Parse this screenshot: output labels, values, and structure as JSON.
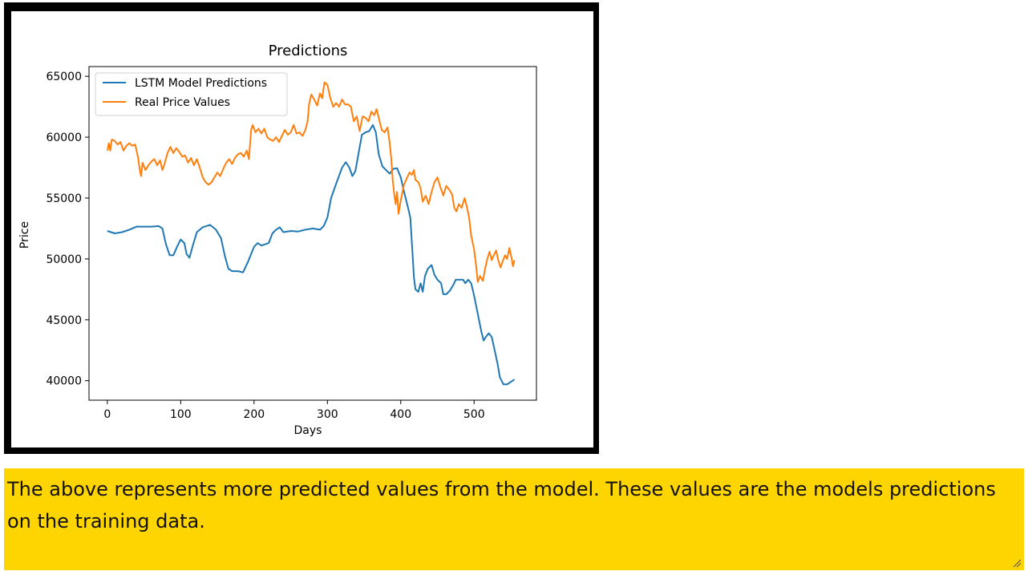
{
  "chart_data": {
    "type": "line",
    "title": "Predictions",
    "xlabel": "Days",
    "ylabel": "Price",
    "xlim": [
      -25,
      585
    ],
    "ylim": [
      38400,
      65800
    ],
    "x_ticks": [
      0,
      100,
      200,
      300,
      400,
      500
    ],
    "y_ticks": [
      40000,
      45000,
      50000,
      55000,
      60000,
      65000
    ],
    "grid": false,
    "legend_position": "upper-left",
    "series": [
      {
        "name": "LSTM Model Predictions",
        "color": "#1f77b4",
        "points": [
          [
            0,
            52300
          ],
          [
            10,
            52100
          ],
          [
            20,
            52200
          ],
          [
            30,
            52400
          ],
          [
            40,
            52650
          ],
          [
            60,
            52650
          ],
          [
            70,
            52700
          ],
          [
            75,
            52500
          ],
          [
            80,
            51200
          ],
          [
            85,
            50300
          ],
          [
            90,
            50300
          ],
          [
            95,
            51000
          ],
          [
            100,
            51600
          ],
          [
            105,
            51300
          ],
          [
            108,
            50400
          ],
          [
            112,
            50100
          ],
          [
            116,
            51000
          ],
          [
            122,
            52200
          ],
          [
            130,
            52600
          ],
          [
            140,
            52800
          ],
          [
            148,
            52400
          ],
          [
            155,
            51700
          ],
          [
            160,
            50300
          ],
          [
            165,
            49200
          ],
          [
            170,
            49000
          ],
          [
            178,
            49000
          ],
          [
            185,
            48900
          ],
          [
            192,
            49800
          ],
          [
            200,
            51000
          ],
          [
            205,
            51300
          ],
          [
            210,
            51100
          ],
          [
            220,
            51300
          ],
          [
            225,
            52100
          ],
          [
            230,
            52400
          ],
          [
            235,
            52600
          ],
          [
            240,
            52200
          ],
          [
            250,
            52300
          ],
          [
            260,
            52250
          ],
          [
            270,
            52400
          ],
          [
            280,
            52500
          ],
          [
            290,
            52400
          ],
          [
            295,
            52700
          ],
          [
            300,
            53400
          ],
          [
            305,
            55000
          ],
          [
            312,
            56200
          ],
          [
            320,
            57500
          ],
          [
            325,
            57950
          ],
          [
            330,
            57500
          ],
          [
            334,
            56800
          ],
          [
            338,
            57200
          ],
          [
            342,
            58500
          ],
          [
            347,
            60200
          ],
          [
            352,
            60400
          ],
          [
            357,
            60500
          ],
          [
            362,
            61000
          ],
          [
            366,
            60400
          ],
          [
            370,
            58600
          ],
          [
            375,
            57600
          ],
          [
            380,
            57300
          ],
          [
            385,
            57000
          ],
          [
            390,
            57400
          ],
          [
            395,
            57450
          ],
          [
            400,
            56700
          ],
          [
            405,
            55400
          ],
          [
            410,
            54200
          ],
          [
            413,
            53400
          ],
          [
            416,
            50500
          ],
          [
            418,
            48500
          ],
          [
            420,
            47500
          ],
          [
            424,
            47300
          ],
          [
            427,
            48000
          ],
          [
            430,
            47300
          ],
          [
            433,
            48600
          ],
          [
            437,
            49200
          ],
          [
            442,
            49500
          ],
          [
            446,
            48700
          ],
          [
            450,
            48300
          ],
          [
            455,
            48000
          ],
          [
            458,
            47100
          ],
          [
            462,
            47100
          ],
          [
            467,
            47400
          ],
          [
            472,
            47900
          ],
          [
            475,
            48300
          ],
          [
            480,
            48300
          ],
          [
            485,
            48300
          ],
          [
            488,
            48000
          ],
          [
            492,
            48300
          ],
          [
            496,
            48000
          ],
          [
            500,
            47000
          ],
          [
            505,
            45500
          ],
          [
            510,
            44000
          ],
          [
            513,
            43300
          ],
          [
            516,
            43600
          ],
          [
            520,
            43900
          ],
          [
            524,
            43600
          ],
          [
            528,
            42500
          ],
          [
            532,
            41400
          ],
          [
            535,
            40300
          ],
          [
            540,
            39700
          ],
          [
            545,
            39700
          ],
          [
            550,
            39900
          ],
          [
            555,
            40100
          ]
        ]
      },
      {
        "name": "Real Price Values",
        "color": "#ff7f0e",
        "points": [
          [
            0,
            58900
          ],
          [
            2,
            59500
          ],
          [
            4,
            58900
          ],
          [
            6,
            59800
          ],
          [
            10,
            59700
          ],
          [
            14,
            59400
          ],
          [
            18,
            59600
          ],
          [
            22,
            58900
          ],
          [
            26,
            59300
          ],
          [
            30,
            59500
          ],
          [
            34,
            59300
          ],
          [
            38,
            59400
          ],
          [
            42,
            58300
          ],
          [
            44,
            57400
          ],
          [
            46,
            56800
          ],
          [
            48,
            57900
          ],
          [
            52,
            57300
          ],
          [
            56,
            57700
          ],
          [
            60,
            58000
          ],
          [
            64,
            58200
          ],
          [
            68,
            57700
          ],
          [
            72,
            58100
          ],
          [
            75,
            57300
          ],
          [
            78,
            57800
          ],
          [
            82,
            58700
          ],
          [
            86,
            59200
          ],
          [
            90,
            58700
          ],
          [
            94,
            59100
          ],
          [
            98,
            58800
          ],
          [
            102,
            58400
          ],
          [
            106,
            58500
          ],
          [
            110,
            57900
          ],
          [
            114,
            58300
          ],
          [
            118,
            57700
          ],
          [
            122,
            58200
          ],
          [
            126,
            57500
          ],
          [
            130,
            56700
          ],
          [
            134,
            56300
          ],
          [
            138,
            56100
          ],
          [
            142,
            56300
          ],
          [
            146,
            56700
          ],
          [
            150,
            57100
          ],
          [
            154,
            56800
          ],
          [
            158,
            57400
          ],
          [
            162,
            57900
          ],
          [
            166,
            58200
          ],
          [
            170,
            57800
          ],
          [
            174,
            58300
          ],
          [
            178,
            58600
          ],
          [
            182,
            58700
          ],
          [
            186,
            58400
          ],
          [
            190,
            58900
          ],
          [
            193,
            58200
          ],
          [
            196,
            60600
          ],
          [
            198,
            61000
          ],
          [
            202,
            60400
          ],
          [
            206,
            60700
          ],
          [
            210,
            60300
          ],
          [
            214,
            60700
          ],
          [
            218,
            60000
          ],
          [
            222,
            59800
          ],
          [
            226,
            59700
          ],
          [
            230,
            60000
          ],
          [
            234,
            59600
          ],
          [
            238,
            60100
          ],
          [
            242,
            60600
          ],
          [
            246,
            60200
          ],
          [
            250,
            60400
          ],
          [
            254,
            61000
          ],
          [
            258,
            60300
          ],
          [
            262,
            60400
          ],
          [
            266,
            60100
          ],
          [
            270,
            60600
          ],
          [
            273,
            61300
          ],
          [
            275,
            62700
          ],
          [
            278,
            63500
          ],
          [
            282,
            63100
          ],
          [
            286,
            62600
          ],
          [
            290,
            63600
          ],
          [
            293,
            63200
          ],
          [
            296,
            64500
          ],
          [
            300,
            64300
          ],
          [
            304,
            63200
          ],
          [
            308,
            62500
          ],
          [
            312,
            62800
          ],
          [
            316,
            62500
          ],
          [
            320,
            63100
          ],
          [
            324,
            62700
          ],
          [
            328,
            62700
          ],
          [
            332,
            62500
          ],
          [
            336,
            61300
          ],
          [
            340,
            61700
          ],
          [
            344,
            60500
          ],
          [
            348,
            61700
          ],
          [
            352,
            61600
          ],
          [
            356,
            61300
          ],
          [
            360,
            62100
          ],
          [
            364,
            61800
          ],
          [
            367,
            62300
          ],
          [
            370,
            61600
          ],
          [
            374,
            60600
          ],
          [
            378,
            60400
          ],
          [
            382,
            60800
          ],
          [
            385,
            59500
          ],
          [
            387,
            58300
          ],
          [
            389,
            56500
          ],
          [
            391,
            55400
          ],
          [
            393,
            54500
          ],
          [
            395,
            55500
          ],
          [
            397,
            53700
          ],
          [
            400,
            54800
          ],
          [
            404,
            56000
          ],
          [
            408,
            56600
          ],
          [
            412,
            57100
          ],
          [
            415,
            56900
          ],
          [
            418,
            57300
          ],
          [
            420,
            56500
          ],
          [
            424,
            56300
          ],
          [
            427,
            55800
          ],
          [
            430,
            54700
          ],
          [
            434,
            55200
          ],
          [
            438,
            54500
          ],
          [
            442,
            55500
          ],
          [
            446,
            56300
          ],
          [
            450,
            56700
          ],
          [
            454,
            55900
          ],
          [
            458,
            55200
          ],
          [
            462,
            56000
          ],
          [
            466,
            55700
          ],
          [
            470,
            55300
          ],
          [
            473,
            54200
          ],
          [
            476,
            53900
          ],
          [
            479,
            54500
          ],
          [
            483,
            54200
          ],
          [
            487,
            55000
          ],
          [
            490,
            54300
          ],
          [
            493,
            53500
          ],
          [
            496,
            51900
          ],
          [
            500,
            50800
          ],
          [
            503,
            49300
          ],
          [
            505,
            48100
          ],
          [
            508,
            48600
          ],
          [
            512,
            48200
          ],
          [
            515,
            49200
          ],
          [
            518,
            50000
          ],
          [
            521,
            50600
          ],
          [
            524,
            49900
          ],
          [
            527,
            50300
          ],
          [
            530,
            50700
          ],
          [
            533,
            49900
          ],
          [
            536,
            49300
          ],
          [
            539,
            49800
          ],
          [
            542,
            50300
          ],
          [
            545,
            50000
          ],
          [
            548,
            50900
          ],
          [
            551,
            50100
          ],
          [
            553,
            49400
          ],
          [
            555,
            49900
          ]
        ]
      }
    ]
  },
  "note": {
    "text": "The above represents more predicted values from the model. These values are the models predictions on the training data."
  }
}
